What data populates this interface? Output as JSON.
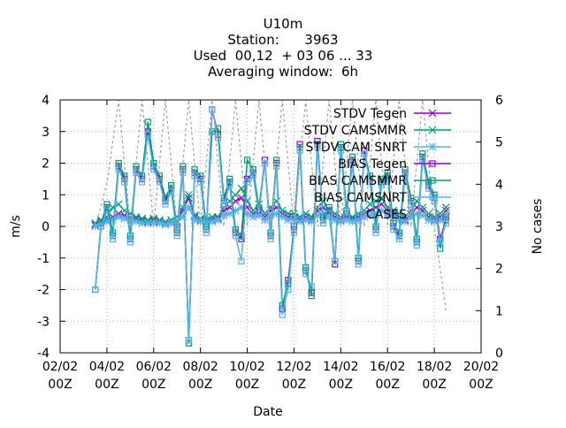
{
  "chart_data": {
    "type": "line",
    "title_lines": [
      "U10m",
      "Station:      3963",
      "Used  00,12  + 03 06 ... 33",
      "Averaging window:  6h"
    ],
    "xlabel": "Date",
    "ylabel": "m/s",
    "y2label": "No cases",
    "xlim": [
      0,
      18
    ],
    "ylim": [
      -4,
      4
    ],
    "y2lim": [
      0,
      6
    ],
    "grid": true,
    "legend_position": "top-right",
    "x_ticks": [
      {
        "x": 0,
        "label": [
          "02/02",
          "00Z"
        ]
      },
      {
        "x": 2,
        "label": [
          "04/02",
          "00Z"
        ]
      },
      {
        "x": 4,
        "label": [
          "06/02",
          "00Z"
        ]
      },
      {
        "x": 6,
        "label": [
          "08/02",
          "00Z"
        ]
      },
      {
        "x": 8,
        "label": [
          "10/02",
          "00Z"
        ]
      },
      {
        "x": 10,
        "label": [
          "12/02",
          "00Z"
        ]
      },
      {
        "x": 12,
        "label": [
          "14/02",
          "00Z"
        ]
      },
      {
        "x": 14,
        "label": [
          "16/02",
          "00Z"
        ]
      },
      {
        "x": 16,
        "label": [
          "18/02",
          "00Z"
        ]
      },
      {
        "x": 18,
        "label": [
          "20/02",
          "00Z"
        ]
      }
    ],
    "y_ticks": [
      -4,
      -3,
      -2,
      -1,
      0,
      1,
      2,
      3,
      4
    ],
    "y2_ticks": [
      0,
      1,
      2,
      3,
      4,
      5,
      6
    ],
    "series": [
      {
        "name": "STDV Tegen",
        "color": "#9400d3",
        "marker": "x",
        "axis": "y",
        "x": [
          1.5,
          1.75,
          2,
          2.25,
          2.5,
          2.75,
          3,
          3.25,
          3.5,
          3.75,
          4,
          4.25,
          4.5,
          4.75,
          5,
          5.25,
          5.5,
          5.75,
          6,
          6.25,
          6.5,
          6.75,
          7,
          7.25,
          7.5,
          7.75,
          8,
          8.25,
          8.5,
          8.75,
          9,
          9.25,
          9.5,
          9.75,
          10,
          10.25,
          10.5,
          10.75,
          11,
          11.25,
          11.5,
          11.75,
          12,
          12.25,
          12.5,
          12.75,
          13,
          13.25,
          13.5,
          13.75,
          14,
          14.25,
          14.5,
          14.75,
          15,
          15.25,
          15.5,
          15.75,
          16,
          16.25,
          16.5
        ],
        "y": [
          0.05,
          0.15,
          0.2,
          0.3,
          0.4,
          0.35,
          0.3,
          0.25,
          0.2,
          0.15,
          0.2,
          0.15,
          0.1,
          0.1,
          0.15,
          0.5,
          0.9,
          0.3,
          0.2,
          0.15,
          0.2,
          0.25,
          0.5,
          0.6,
          0.8,
          0.9,
          0.6,
          0.4,
          0.5,
          0.3,
          0.5,
          0.6,
          0.4,
          0.3,
          0.3,
          0.2,
          0.3,
          0.2,
          0.5,
          0.6,
          0.4,
          0.3,
          0.2,
          0.3,
          0.25,
          0.3,
          0.4,
          0.5,
          0.6,
          0.7,
          0.5,
          0.4,
          0.3,
          0.2,
          0.4,
          0.6,
          0.5,
          0.3,
          0.2,
          0.3,
          0.5
        ]
      },
      {
        "name": "STDV CAMSMMR",
        "color": "#009e73",
        "marker": "x",
        "axis": "y",
        "x": [
          1.5,
          1.75,
          2,
          2.25,
          2.5,
          2.75,
          3,
          3.25,
          3.5,
          3.75,
          4,
          4.25,
          4.5,
          4.75,
          5,
          5.25,
          5.5,
          5.75,
          6,
          6.25,
          6.5,
          6.75,
          7,
          7.25,
          7.5,
          7.75,
          8,
          8.25,
          8.5,
          8.75,
          9,
          9.25,
          9.5,
          9.75,
          10,
          10.25,
          10.5,
          10.75,
          11,
          11.25,
          11.5,
          11.75,
          12,
          12.25,
          12.5,
          12.75,
          13,
          13.25,
          13.5,
          13.75,
          14,
          14.25,
          14.5,
          14.75,
          15,
          15.25,
          15.5,
          15.75,
          16,
          16.25,
          16.5
        ],
        "y": [
          0.1,
          0.2,
          0.3,
          0.6,
          0.7,
          0.5,
          0.4,
          0.3,
          0.25,
          0.2,
          0.25,
          0.2,
          0.15,
          0.2,
          0.3,
          0.6,
          1.0,
          0.35,
          0.25,
          0.2,
          0.3,
          0.3,
          0.6,
          0.8,
          1.0,
          1.2,
          0.8,
          0.5,
          0.7,
          0.4,
          0.6,
          0.8,
          0.5,
          0.4,
          0.4,
          0.3,
          0.4,
          0.3,
          0.6,
          0.8,
          0.5,
          0.4,
          0.3,
          0.35,
          0.3,
          0.4,
          0.5,
          0.7,
          0.8,
          0.9,
          0.6,
          0.5,
          0.4,
          0.3,
          0.5,
          0.8,
          0.6,
          0.4,
          0.3,
          0.4,
          0.6
        ]
      },
      {
        "name": "STDV CAM SNRT",
        "color": "#56b4e9",
        "marker": "star",
        "axis": "y",
        "x": [
          1.5,
          1.75,
          2,
          2.25,
          2.5,
          2.75,
          3,
          3.25,
          3.5,
          3.75,
          4,
          4.25,
          4.5,
          4.75,
          5,
          5.25,
          5.5,
          5.75,
          6,
          6.25,
          6.5,
          6.75,
          7,
          7.25,
          7.5,
          7.75,
          8,
          8.25,
          8.5,
          8.75,
          9,
          9.25,
          9.5,
          9.75,
          10,
          10.25,
          10.5,
          10.75,
          11,
          11.25,
          11.5,
          11.75,
          12,
          12.25,
          12.5,
          12.75,
          13,
          13.25,
          13.5,
          13.75,
          14,
          14.25,
          14.5,
          14.75,
          15,
          15.25,
          15.5,
          15.75,
          16,
          16.25,
          16.5
        ],
        "y": [
          0.0,
          0.1,
          0.15,
          0.2,
          0.3,
          0.25,
          0.2,
          0.15,
          0.1,
          0.1,
          0.1,
          0.1,
          0.05,
          0.1,
          0.1,
          0.3,
          0.6,
          0.2,
          0.15,
          0.1,
          0.15,
          0.2,
          0.35,
          0.4,
          0.5,
          0.6,
          0.4,
          0.3,
          0.35,
          0.2,
          0.35,
          0.4,
          0.3,
          0.2,
          0.2,
          0.15,
          0.2,
          0.15,
          0.35,
          0.4,
          0.3,
          0.2,
          0.15,
          0.2,
          0.15,
          0.2,
          0.3,
          0.35,
          0.4,
          0.5,
          0.35,
          0.3,
          0.2,
          0.15,
          0.3,
          0.4,
          0.35,
          0.2,
          0.15,
          0.2,
          0.35
        ]
      },
      {
        "name": "BIAS Tegen",
        "color": "#9400d3",
        "marker": "square",
        "axis": "y",
        "x": [
          1.5,
          1.75,
          2,
          2.25,
          2.5,
          2.75,
          3,
          3.25,
          3.5,
          3.75,
          4,
          4.25,
          4.5,
          4.75,
          5,
          5.25,
          5.5,
          5.75,
          6,
          6.25,
          6.5,
          6.75,
          7,
          7.25,
          7.5,
          7.75,
          8,
          8.25,
          8.5,
          8.75,
          9,
          9.25,
          9.5,
          9.75,
          10,
          10.25,
          10.5,
          10.75,
          11,
          11.25,
          11.5,
          11.75,
          12,
          12.25,
          12.5,
          12.75,
          13,
          13.25,
          13.5,
          13.75,
          14,
          14.25,
          14.5,
          14.75,
          15,
          15.25,
          15.5,
          15.75,
          16,
          16.25,
          16.5
        ],
        "y": [
          -2.0,
          0.0,
          0.6,
          -0.3,
          1.9,
          1.5,
          -0.4,
          1.8,
          1.5,
          3.0,
          1.9,
          1.5,
          0.8,
          1.2,
          -0.2,
          1.8,
          -3.6,
          1.7,
          1.5,
          -0.1,
          3.7,
          2.9,
          0.8,
          1.4,
          -0.2,
          -0.4,
          1.5,
          1.7,
          0.5,
          2.1,
          -0.3,
          2.0,
          -2.6,
          -1.7,
          -0.1,
          2.6,
          -1.4,
          -2.1,
          2.7,
          0.2,
          0.5,
          -1.2,
          2.5,
          0.4,
          2.1,
          -1.1,
          2.4,
          1.5,
          -0.1,
          1.4,
          1.6,
          0.0,
          -0.3,
          1.7,
          0.8,
          -0.5,
          2.2,
          1.3,
          0.9,
          -0.4,
          0.2
        ]
      },
      {
        "name": "BIAS CAMSMMR",
        "color": "#009e73",
        "marker": "square",
        "axis": "y",
        "x": [
          1.5,
          1.75,
          2,
          2.25,
          2.5,
          2.75,
          3,
          3.25,
          3.5,
          3.75,
          4,
          4.25,
          4.5,
          4.75,
          5,
          5.25,
          5.5,
          5.75,
          6,
          6.25,
          6.5,
          6.75,
          7,
          7.25,
          7.5,
          7.75,
          8,
          8.25,
          8.5,
          8.75,
          9,
          9.25,
          9.5,
          9.75,
          10,
          10.25,
          10.5,
          10.75,
          11,
          11.25,
          11.5,
          11.75,
          12,
          12.25,
          12.5,
          12.75,
          13,
          13.25,
          13.5,
          13.75,
          14,
          14.25,
          14.5,
          14.75,
          15,
          15.25,
          15.5,
          15.75,
          16,
          16.25,
          16.5
        ],
        "y": [
          -2.0,
          0.1,
          0.7,
          -0.2,
          2.0,
          1.6,
          -0.3,
          1.9,
          1.6,
          3.3,
          2.0,
          1.6,
          0.9,
          1.3,
          -0.1,
          1.9,
          -3.7,
          1.8,
          1.6,
          0.0,
          3.0,
          3.1,
          0.9,
          1.5,
          -0.1,
          -0.3,
          2.1,
          1.8,
          0.6,
          2.0,
          -0.2,
          2.1,
          -2.5,
          -1.8,
          0.0,
          2.5,
          -1.3,
          -2.2,
          2.6,
          0.3,
          0.6,
          -1.1,
          2.6,
          0.5,
          2.2,
          -1.0,
          2.3,
          1.6,
          0.0,
          1.5,
          1.7,
          0.1,
          -0.2,
          1.8,
          0.9,
          -0.4,
          2.3,
          1.4,
          1.0,
          -0.7,
          0.3
        ]
      },
      {
        "name": "BIAS CAMSNRT",
        "color": "#56b4e9",
        "marker": "square",
        "axis": "y",
        "x": [
          1.5,
          1.75,
          2,
          2.25,
          2.5,
          2.75,
          3,
          3.25,
          3.5,
          3.75,
          4,
          4.25,
          4.5,
          4.75,
          5,
          5.25,
          5.5,
          5.75,
          6,
          6.25,
          6.5,
          6.75,
          7,
          7.25,
          7.5,
          7.75,
          8,
          8.25,
          8.5,
          8.75,
          9,
          9.25,
          9.5,
          9.75,
          10,
          10.25,
          10.5,
          10.75,
          11,
          11.25,
          11.5,
          11.75,
          12,
          12.25,
          12.5,
          12.75,
          13,
          13.25,
          13.5,
          13.75,
          14,
          14.25,
          14.5,
          14.75,
          15,
          15.25,
          15.5,
          15.75,
          16,
          16.25,
          16.5
        ],
        "y": [
          -2.0,
          0.0,
          0.5,
          -0.4,
          1.8,
          1.4,
          -0.5,
          1.7,
          1.4,
          2.9,
          1.8,
          1.4,
          0.7,
          1.1,
          -0.3,
          1.7,
          -3.6,
          1.6,
          1.4,
          -0.2,
          3.7,
          2.8,
          0.7,
          1.3,
          -0.3,
          -1.1,
          1.4,
          1.6,
          0.4,
          2.0,
          -0.4,
          1.9,
          -2.8,
          -2.0,
          -0.2,
          2.4,
          -1.5,
          -1.9,
          2.5,
          0.1,
          0.4,
          -1.1,
          2.4,
          0.3,
          2.0,
          -1.2,
          2.3,
          1.4,
          -0.2,
          1.3,
          1.5,
          -0.1,
          -0.4,
          1.6,
          0.7,
          -0.6,
          2.1,
          1.2,
          0.8,
          -0.5,
          0.1
        ]
      },
      {
        "name": "CASES",
        "color": "#a0a0a0",
        "marker": "none",
        "dashed": true,
        "axis": "y2",
        "x": [
          1.5,
          2,
          2.5,
          3,
          3.5,
          4,
          4.5,
          5,
          5.5,
          6,
          6.5,
          7,
          7.5,
          8,
          8.5,
          9,
          9.5,
          10,
          10.5,
          11,
          11.5,
          12,
          12.5,
          13,
          13.5,
          14,
          14.5,
          15,
          15.5,
          16,
          16.5
        ],
        "y": [
          3,
          4,
          6,
          3,
          6,
          3,
          6,
          3,
          6,
          3,
          6,
          3,
          6,
          3,
          6,
          3,
          6,
          3,
          6,
          3,
          6,
          3,
          6,
          3,
          6,
          3,
          6,
          3,
          6,
          3,
          1
        ]
      }
    ]
  }
}
